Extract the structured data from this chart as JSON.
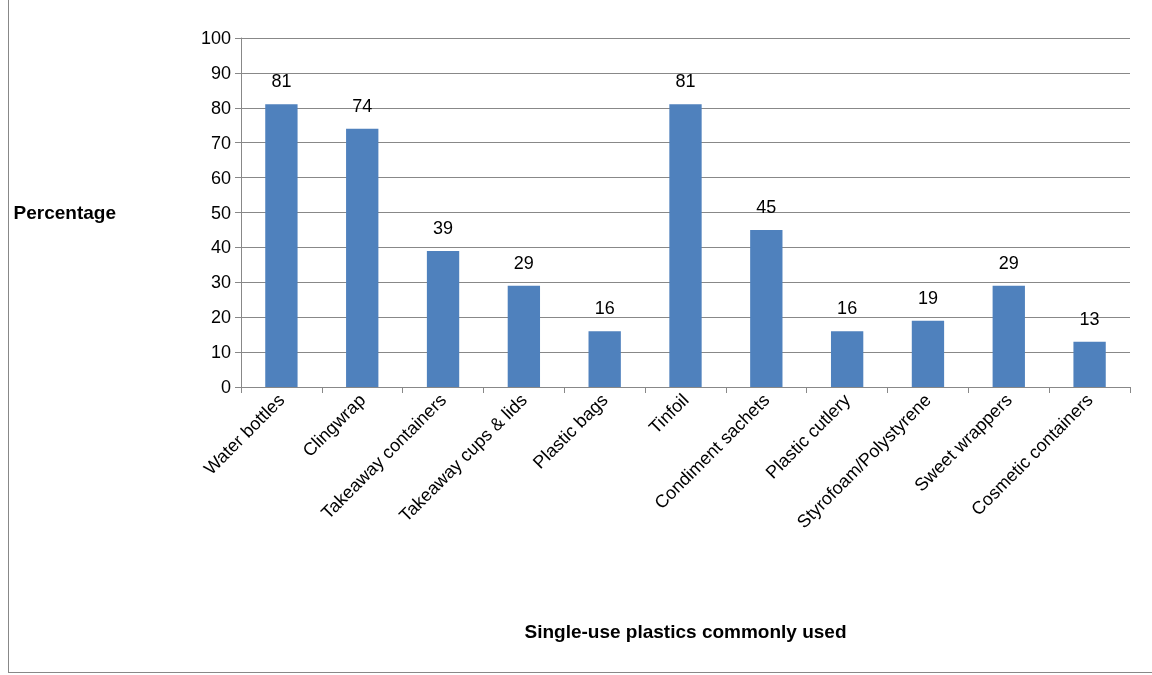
{
  "chart_data": {
    "type": "bar",
    "xlabel": "Single-use plastics commonly used",
    "ylabel": "Percentage",
    "categories": [
      "Water bottles",
      "Clingwrap",
      "Takeaway containers",
      "Takeaway cups & lids",
      "Plastic bags",
      "Tinfoil",
      "Condiment sachets",
      "Plastic cutlery",
      "Styrofoam/Polystyrene",
      "Sweet wrappers",
      "Cosmetic containers"
    ],
    "values": [
      81,
      74,
      39,
      29,
      16,
      81,
      45,
      16,
      19,
      29,
      13
    ],
    "color": "#4f81bd",
    "ylim": [
      0,
      100
    ],
    "yticks": [
      0,
      10,
      20,
      30,
      40,
      50,
      60,
      70,
      80,
      90,
      100
    ],
    "grid": "y",
    "data_labels": true
  }
}
